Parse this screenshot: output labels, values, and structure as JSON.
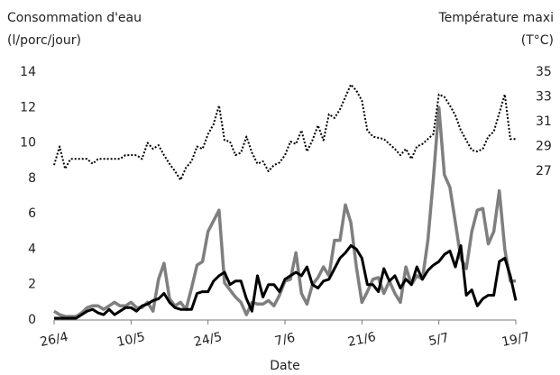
{
  "chart_data": {
    "type": "line",
    "y_label": [
      "Consommation d'eau",
      "(l/porc/jour)"
    ],
    "y2_label": [
      "Température maxi",
      "(T°C)"
    ],
    "x_label": "Date",
    "x": [
      0,
      1,
      2,
      3,
      4,
      5,
      6,
      7,
      8,
      9,
      10,
      11,
      12,
      13,
      14,
      15,
      16,
      17,
      18,
      19,
      20,
      21,
      22,
      23,
      24,
      25,
      26,
      27,
      28,
      29,
      30,
      31,
      32,
      33,
      34,
      35,
      36,
      37,
      38,
      39,
      40,
      41,
      42,
      43,
      44,
      45,
      46,
      47,
      48,
      49,
      50,
      51,
      52,
      53,
      54,
      55,
      56,
      57,
      58,
      59,
      60,
      61,
      62,
      63,
      64,
      65,
      66,
      67,
      68,
      69,
      70,
      71,
      72,
      73,
      74,
      75,
      76,
      77,
      78,
      79,
      80,
      81,
      82,
      83,
      84
    ],
    "xlim": [
      0,
      84
    ],
    "xticks": [
      {
        "value": 0,
        "label": "26/4"
      },
      {
        "value": 14,
        "label": "10/5"
      },
      {
        "value": 28,
        "label": "24/5"
      },
      {
        "value": 42,
        "label": "7/6"
      },
      {
        "value": 56,
        "label": "21/6"
      },
      {
        "value": 70,
        "label": "5/7"
      },
      {
        "value": 84,
        "label": "19/7"
      }
    ],
    "ylim": [
      0,
      14
    ],
    "yticks": [
      0,
      2,
      4,
      6,
      8,
      10,
      12,
      14
    ],
    "y2lim": [
      15,
      35
    ],
    "y2ticks": [
      27,
      29,
      31,
      33,
      35
    ],
    "series": [
      {
        "color": "#000000",
        "style": "solid",
        "width": 3,
        "values": [
          0.1,
          0.1,
          0.1,
          0.1,
          0.1,
          0.3,
          0.5,
          0.6,
          0.4,
          0.3,
          0.6,
          0.3,
          0.5,
          0.7,
          0.7,
          0.5,
          0.8,
          0.9,
          1.1,
          1.2,
          1.5,
          1.0,
          0.7,
          0.6,
          0.6,
          0.6,
          1.5,
          1.6,
          1.6,
          2.2,
          2.5,
          2.7,
          2.0,
          2.2,
          2.2,
          1.2,
          0.5,
          2.5,
          1.3,
          2.0,
          2.0,
          1.6,
          2.3,
          2.5,
          2.7,
          2.5,
          3.0,
          2.0,
          1.8,
          2.2,
          2.3,
          2.9,
          3.5,
          3.8,
          4.2,
          4.0,
          3.5,
          2.0,
          2.0,
          1.6,
          2.9,
          2.2,
          2.5,
          1.8,
          2.3,
          2.0,
          3.0,
          2.3,
          2.8,
          3.1,
          3.3,
          3.7,
          3.9,
          3.0,
          4.2,
          1.4,
          1.7,
          0.8,
          1.2,
          1.4,
          1.4,
          3.3,
          3.5,
          2.5,
          1.1
        ]
      },
      {
        "color": "#7f7f7f",
        "style": "solid",
        "width": 3.5,
        "values": [
          0.5,
          0.3,
          0.2,
          0.2,
          0.2,
          0.4,
          0.7,
          0.8,
          0.8,
          0.6,
          0.8,
          1.0,
          0.8,
          0.8,
          1.0,
          0.7,
          0.7,
          1.0,
          0.5,
          2.3,
          3.2,
          1.2,
          0.8,
          1.0,
          0.6,
          1.8,
          3.1,
          3.3,
          5.0,
          5.6,
          6.2,
          2.1,
          1.7,
          1.3,
          1.0,
          0.3,
          1.0,
          0.9,
          0.9,
          1.1,
          0.8,
          1.4,
          2.2,
          2.3,
          3.8,
          1.5,
          0.9,
          2.0,
          2.4,
          3.0,
          2.5,
          4.5,
          4.5,
          6.5,
          5.5,
          3.0,
          1.0,
          1.6,
          2.3,
          2.4,
          1.5,
          2.2,
          1.5,
          1.0,
          3.0,
          2.0,
          2.5,
          2.3,
          4.5,
          8.0,
          12.0,
          8.2,
          7.5,
          5.5,
          3.5,
          2.9,
          5.0,
          6.2,
          6.3,
          4.3,
          5.0,
          7.3,
          4.0,
          2.2,
          2.2
        ]
      },
      {
        "color": "#000000",
        "style": "dotted",
        "width": 2,
        "axis": "y2",
        "values": [
          27.5,
          29.0,
          27.2,
          28.0,
          28.0,
          28.0,
          28.0,
          27.6,
          28.0,
          28.0,
          28.0,
          28.0,
          28.0,
          28.3,
          28.3,
          28.3,
          28.0,
          29.3,
          28.8,
          29.1,
          28.3,
          27.6,
          27.0,
          26.3,
          27.3,
          27.8,
          29.0,
          28.8,
          30.0,
          30.8,
          32.3,
          29.5,
          29.4,
          28.3,
          28.5,
          29.8,
          28.5,
          27.6,
          27.8,
          27.0,
          27.5,
          27.7,
          28.3,
          29.4,
          29.2,
          30.3,
          28.6,
          29.5,
          30.7,
          29.5,
          31.6,
          31.3,
          32.0,
          33.0,
          34.0,
          33.5,
          32.7,
          30.3,
          29.8,
          29.7,
          29.6,
          29.2,
          28.8,
          28.3,
          28.8,
          28.0,
          29.0,
          29.2,
          29.6,
          30.0,
          33.2,
          33.0,
          32.3,
          31.5,
          30.3,
          29.5,
          28.7,
          28.6,
          28.8,
          29.8,
          30.2,
          31.7,
          33.2,
          29.6,
          29.6
        ]
      }
    ]
  }
}
